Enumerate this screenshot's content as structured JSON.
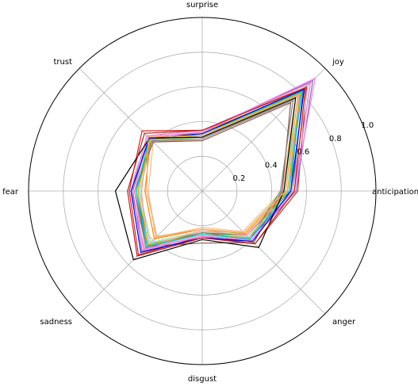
{
  "chart_data": {
    "type": "radar",
    "axes": [
      "anticipation",
      "joy",
      "surprise",
      "trust",
      "fear",
      "sadness",
      "disgust",
      "anger"
    ],
    "rlim": [
      0,
      1.0
    ],
    "rticks": [
      0.2,
      0.4,
      0.6,
      0.8,
      1.0
    ],
    "rtick_labels": [
      "0.2",
      "0.4",
      "0.6",
      "0.8",
      "1.0"
    ],
    "grid": true,
    "legend": "none",
    "series": [
      {
        "color": "#1f77b4",
        "values": [
          0.52,
          0.82,
          0.33,
          0.42,
          0.38,
          0.44,
          0.25,
          0.39
        ]
      },
      {
        "color": "#aec7e8",
        "values": [
          0.48,
          0.8,
          0.32,
          0.41,
          0.36,
          0.43,
          0.24,
          0.37
        ]
      },
      {
        "color": "#ff7f0e",
        "values": [
          0.49,
          0.81,
          0.34,
          0.42,
          0.33,
          0.39,
          0.22,
          0.35
        ]
      },
      {
        "color": "#ffbb78",
        "values": [
          0.46,
          0.76,
          0.3,
          0.4,
          0.31,
          0.38,
          0.21,
          0.33
        ]
      },
      {
        "color": "#2ca02c",
        "values": [
          0.51,
          0.79,
          0.33,
          0.43,
          0.37,
          0.44,
          0.24,
          0.36
        ]
      },
      {
        "color": "#98df8a",
        "values": [
          0.47,
          0.78,
          0.31,
          0.41,
          0.36,
          0.42,
          0.23,
          0.34
        ]
      },
      {
        "color": "#d62728",
        "values": [
          0.55,
          0.85,
          0.35,
          0.49,
          0.42,
          0.52,
          0.26,
          0.43
        ]
      },
      {
        "color": "#ff9896",
        "values": [
          0.5,
          0.79,
          0.32,
          0.44,
          0.35,
          0.45,
          0.23,
          0.36
        ]
      },
      {
        "color": "#9467bd",
        "values": [
          0.54,
          0.9,
          0.34,
          0.44,
          0.4,
          0.49,
          0.27,
          0.4
        ]
      },
      {
        "color": "#c5b0d5",
        "values": [
          0.52,
          0.86,
          0.31,
          0.43,
          0.38,
          0.46,
          0.25,
          0.38
        ]
      },
      {
        "color": "#8c564b",
        "values": [
          0.46,
          0.72,
          0.29,
          0.4,
          0.39,
          0.45,
          0.3,
          0.42
        ]
      },
      {
        "color": "#e377c2",
        "values": [
          0.53,
          0.88,
          0.35,
          0.45,
          0.41,
          0.47,
          0.26,
          0.4
        ]
      },
      {
        "color": "#7f7f7f",
        "values": [
          0.45,
          0.74,
          0.3,
          0.41,
          0.39,
          0.46,
          0.24,
          0.39
        ]
      },
      {
        "color": "#bcbd22",
        "values": [
          0.49,
          0.8,
          0.32,
          0.42,
          0.37,
          0.44,
          0.25,
          0.38
        ]
      },
      {
        "color": "#17becf",
        "values": [
          0.5,
          0.81,
          0.33,
          0.43,
          0.38,
          0.45,
          0.25,
          0.39
        ]
      },
      {
        "color": "#ee82ee",
        "values": [
          0.53,
          0.92,
          0.34,
          0.44,
          0.39,
          0.48,
          0.26,
          0.4
        ]
      },
      {
        "color": "#000000",
        "values": [
          0.47,
          0.76,
          0.31,
          0.43,
          0.5,
          0.56,
          0.28,
          0.46
        ]
      },
      {
        "color": "#0000cd",
        "values": [
          0.51,
          0.83,
          0.33,
          0.43,
          0.41,
          0.5,
          0.27,
          0.41
        ]
      },
      {
        "color": "#b22222",
        "values": [
          0.53,
          0.84,
          0.35,
          0.47,
          0.43,
          0.53,
          0.27,
          0.43
        ]
      },
      {
        "color": "#f4a460",
        "values": [
          0.48,
          0.78,
          0.32,
          0.44,
          0.32,
          0.37,
          0.22,
          0.34
        ]
      }
    ]
  }
}
